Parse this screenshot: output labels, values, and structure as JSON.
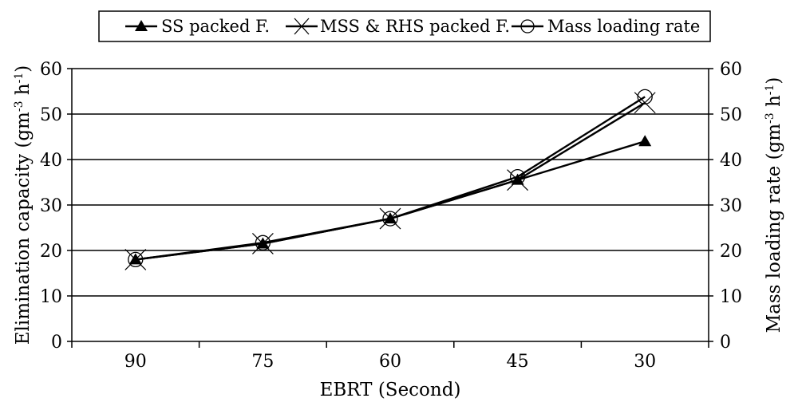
{
  "chart_data": {
    "type": "line",
    "categories": [
      "90",
      "75",
      "60",
      "45",
      "30"
    ],
    "xlabel": "EBRT (Second)",
    "ylabel": "Elimination capacity (gm",
    "ylabel_sup": "-3",
    "ylabel_tail": " h",
    "ylabel_sup2": "-1",
    "ylabel_end": ")",
    "y2label": "Mass loading rate (gm",
    "y2label_sup": "-3",
    "y2label_tail": " h",
    "y2label_sup2": "-1",
    "y2label_end": ")",
    "ylim": [
      0,
      60
    ],
    "y2lim": [
      0,
      60
    ],
    "yticks": [
      "0",
      "10",
      "20",
      "30",
      "40",
      "50",
      "60"
    ],
    "grid": true,
    "legend_position": "top",
    "series": [
      {
        "name": "SS packed F.",
        "marker": "triangle",
        "values": [
          18,
          21.5,
          27,
          35.5,
          44
        ]
      },
      {
        "name": "MSS & RHS packed F.",
        "marker": "x",
        "values": [
          18,
          21.5,
          27,
          35.5,
          52.5
        ]
      },
      {
        "name": "Mass loading rate",
        "marker": "circle",
        "values": [
          18,
          21.7,
          27,
          36.2,
          53.8
        ]
      }
    ]
  }
}
